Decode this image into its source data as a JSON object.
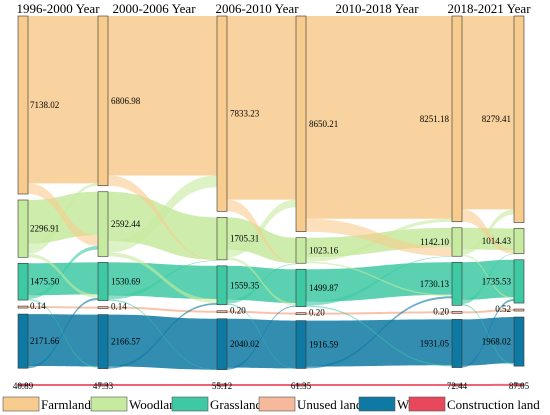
{
  "chart_data": {
    "type": "sankey",
    "periods": [
      "1996-2000 Year",
      "2000-2006 Year",
      "2006-2010 Year",
      "2010-2018 Year",
      "2018-2021 Year"
    ],
    "categories": [
      "Farmland",
      "Woodland",
      "Grassland",
      "Unused land",
      "Water",
      "Construction land"
    ],
    "colors": {
      "Farmland": "#f8cb8e",
      "Woodland": "#c6ea9f",
      "Grassland": "#3ec9a3",
      "Unused land": "#f6b99b",
      "Water": "#0e79a3",
      "Construction land": "#e8485c"
    },
    "values": {
      "Farmland": [
        "7138.02",
        "6806.98",
        "7833.23",
        "8650.21",
        "8251.18",
        "8279.41"
      ],
      "Woodland": [
        "2296.91",
        "2592.44",
        "1705.31",
        "1023.16",
        "1142.10",
        "1014.43"
      ],
      "Grassland": [
        "1475.50",
        "1530.69",
        "1559.35",
        "1499.87",
        "1730.13",
        "1735.53"
      ],
      "Unused land": [
        "0.14",
        "0.14",
        "0.20",
        "0.20",
        "0.20",
        "0.52"
      ],
      "Water": [
        "2171.66",
        "2166.57",
        "2040.02",
        "1916.59",
        "1931.05",
        "1968.02"
      ],
      "Construction land": [
        "40.89",
        "47.33",
        "55.12",
        "61.35",
        "72.44",
        "87.05"
      ]
    },
    "legend": [
      "Farmland",
      "Woodland",
      "Grassland",
      "Unused land",
      "Water",
      "Construction land"
    ]
  }
}
